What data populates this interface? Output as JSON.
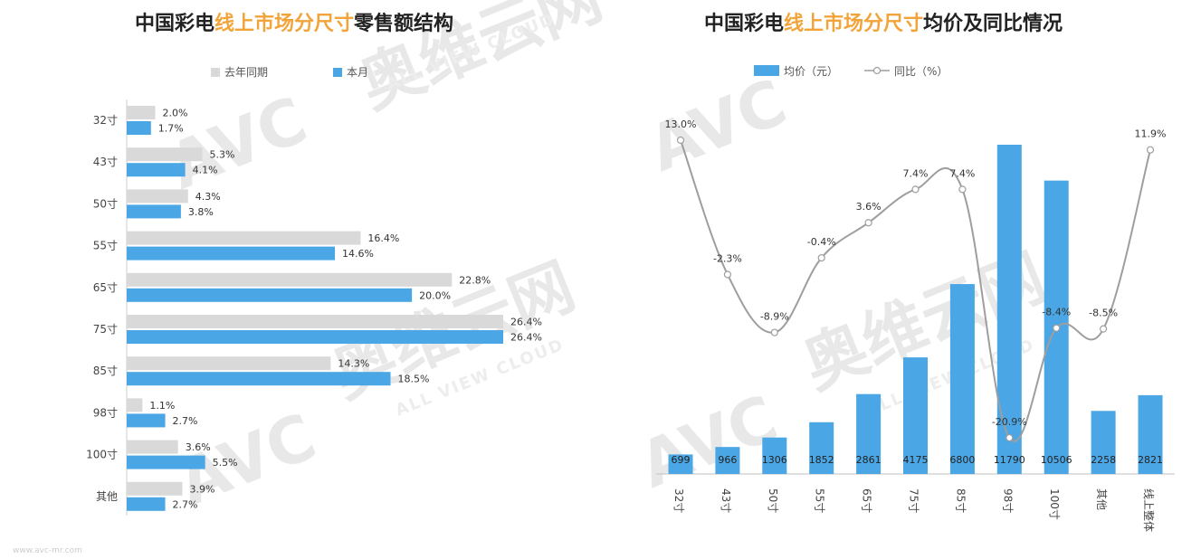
{
  "left_chart": {
    "title_parts": [
      "中国彩电",
      "线上市场分尺寸",
      "零售额结构"
    ],
    "colors": {
      "prev": "#d9d9d9",
      "curr": "#4aa6e4",
      "highlight": "#f2a43a"
    }
  },
  "right_chart": {
    "title_parts": [
      "中国彩电",
      "线上市场分尺寸",
      "均价及同比情况"
    ],
    "colors": {
      "bar": "#4aa6e4",
      "line": "#9e9e9e",
      "highlight": "#f2a43a"
    }
  },
  "watermark": {
    "brand": "AVC",
    "cn": "奥维云网",
    "en": "ALL VIEW CLOUD"
  },
  "footer": "www.avc-mr.com",
  "chart_data": [
    {
      "type": "bar",
      "orientation": "horizontal",
      "title": "中国彩电线上市场分尺寸零售额结构",
      "categories": [
        "32寸",
        "43寸",
        "50寸",
        "55寸",
        "65寸",
        "75寸",
        "85寸",
        "98寸",
        "100寸",
        "其他"
      ],
      "series": [
        {
          "name": "去年同期",
          "values": [
            2.0,
            5.3,
            4.3,
            16.4,
            22.8,
            26.4,
            14.3,
            1.1,
            3.6,
            3.9
          ],
          "labels": [
            "2.0%",
            "5.3%",
            "4.3%",
            "16.4%",
            "22.8%",
            "26.4%",
            "14.3%",
            "1.1%",
            "3.6%",
            "3.9%"
          ]
        },
        {
          "name": "本月",
          "values": [
            1.7,
            4.1,
            3.8,
            14.6,
            20.0,
            26.4,
            18.5,
            2.7,
            5.5,
            2.7
          ],
          "labels": [
            "1.7%",
            "4.1%",
            "3.8%",
            "14.6%",
            "20.0%",
            "26.4%",
            "18.5%",
            "2.7%",
            "5.5%",
            "2.7%"
          ]
        }
      ],
      "xlim": [
        0,
        27
      ],
      "legend": "top-center",
      "grid": false
    },
    {
      "type": "bar",
      "combo": "bar+line",
      "title": "中国彩电线上市场分尺寸均价及同比情况",
      "categories": [
        "32寸",
        "43寸",
        "50寸",
        "55寸",
        "65寸",
        "75寸",
        "85寸",
        "98寸",
        "100寸",
        "其他",
        "线上整体"
      ],
      "series": [
        {
          "name": "均价（元）",
          "type": "bar",
          "values": [
            699,
            966,
            1306,
            1852,
            2861,
            4175,
            6800,
            11790,
            10506,
            2258,
            2821
          ],
          "labels": [
            "699",
            "966",
            "1306",
            "1852",
            "2861",
            "4175",
            "6800",
            "11790",
            "10506",
            "2258",
            "2821"
          ]
        },
        {
          "name": "同比（%）",
          "type": "line",
          "values": [
            13.0,
            -2.3,
            -8.9,
            -0.4,
            3.6,
            7.4,
            7.4,
            -20.9,
            -8.4,
            -8.5,
            11.9
          ],
          "labels": [
            "13.0%",
            "-2.3%",
            "-8.9%",
            "-0.4%",
            "3.6%",
            "7.4%",
            "7.4%",
            "-20.9%",
            "-8.4%",
            "-8.5%",
            "11.9%"
          ]
        }
      ],
      "ylim": [
        0,
        12000
      ],
      "y2lim": [
        -24,
        17
      ],
      "legend": "top-center",
      "grid": false
    }
  ]
}
